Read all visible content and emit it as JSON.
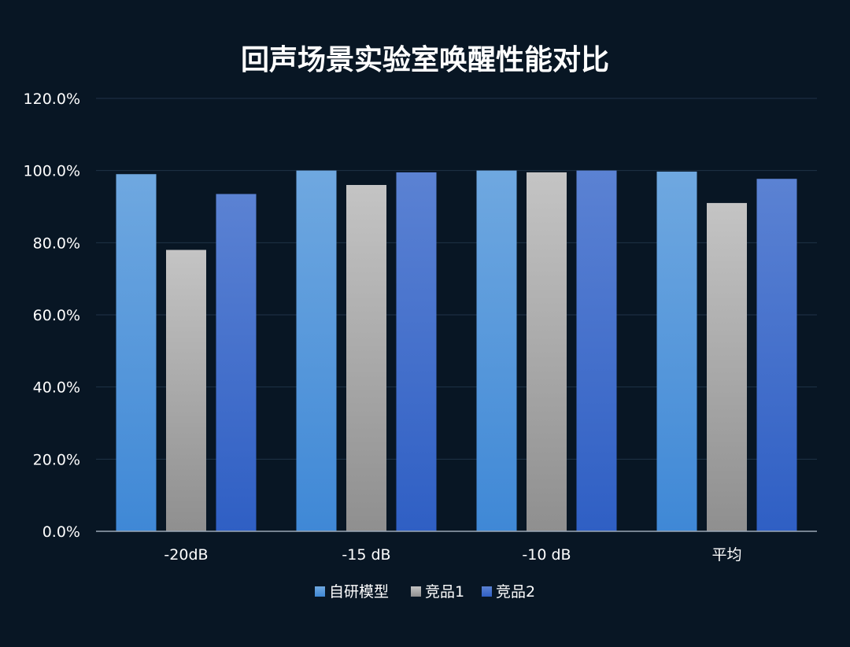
{
  "chart_data": {
    "type": "bar",
    "title": "回声场景实验室唤醒性能对比",
    "xlabel": "",
    "ylabel": "",
    "categories": [
      "-20dB",
      "-15 dB",
      "-10 dB",
      "平均"
    ],
    "ylim": [
      0,
      120
    ],
    "yticks": [
      "0.0%",
      "20.0%",
      "40.0%",
      "60.0%",
      "80.0%",
      "100.0%",
      "120.0%"
    ],
    "ytick_values": [
      0,
      20,
      40,
      60,
      80,
      100,
      120
    ],
    "grid": true,
    "legend_position": "bottom",
    "series": [
      {
        "name": "自研模型",
        "values": [
          99.0,
          100.0,
          100.0,
          99.7
        ],
        "color_top": "#6fa8e0",
        "color_bottom": "#3f88d6"
      },
      {
        "name": "竞品1",
        "values": [
          78.0,
          96.0,
          99.5,
          91.0
        ],
        "color_top": "#c4c4c4",
        "color_bottom": "#8f8f8f"
      },
      {
        "name": "竞品2",
        "values": [
          93.5,
          99.5,
          100.0,
          97.7
        ],
        "color_top": "#5b82d3",
        "color_bottom": "#2f5fc4"
      }
    ]
  }
}
